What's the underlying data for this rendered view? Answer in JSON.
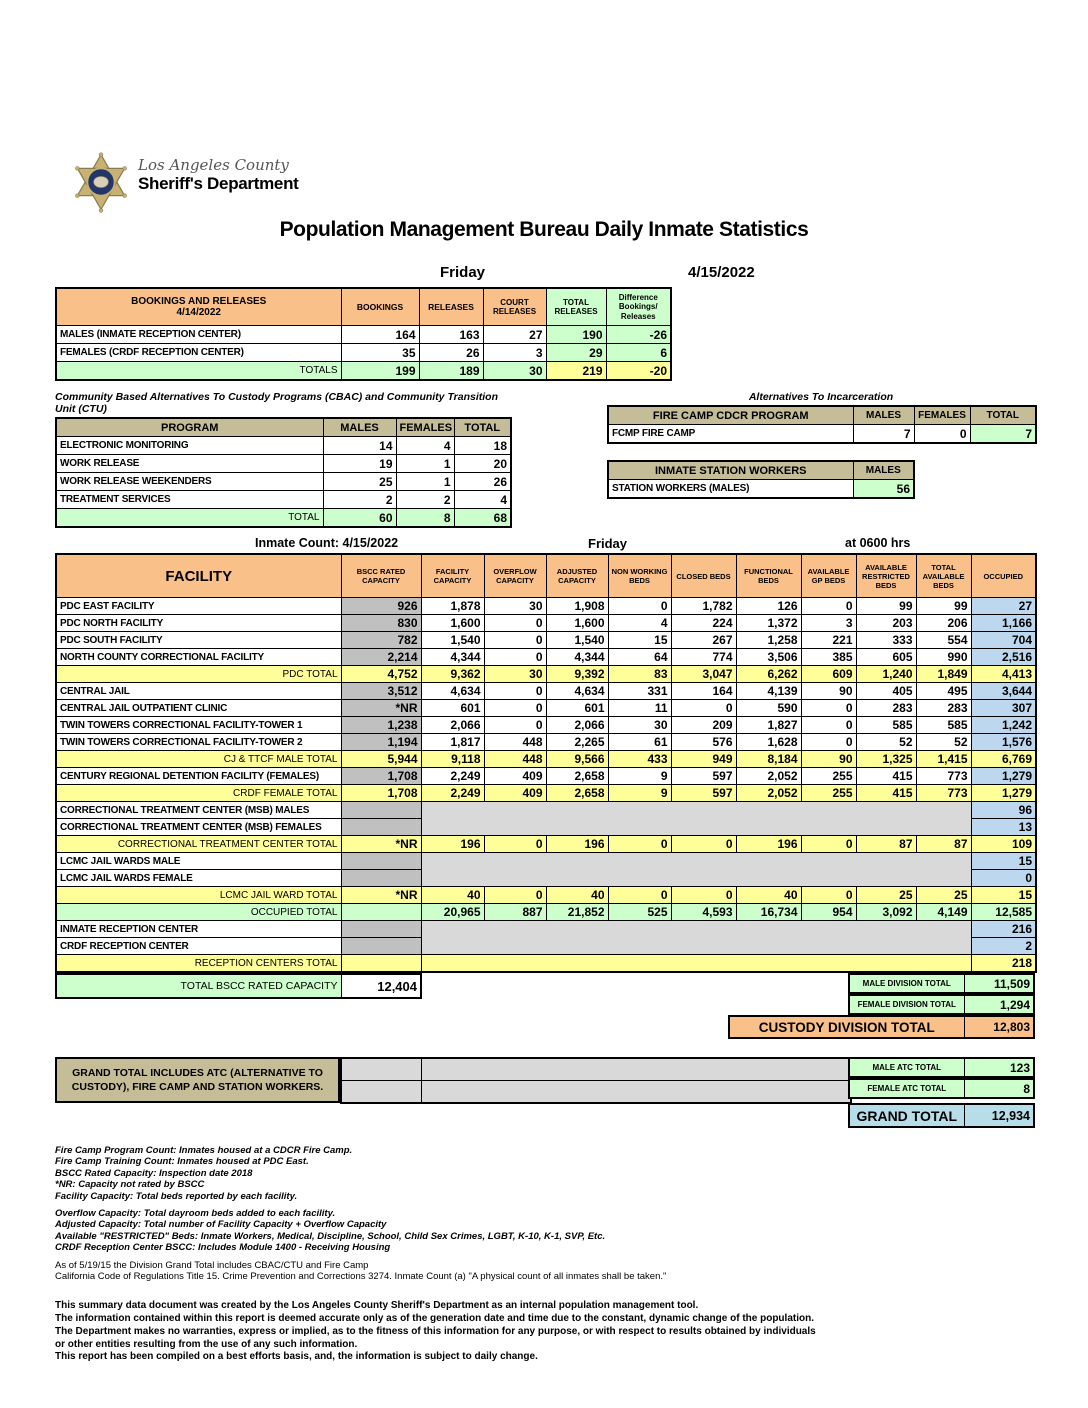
{
  "page": {
    "logo_line1": "Los Angeles County",
    "logo_line2": "Sheriff's Department",
    "title": "Population Management Bureau Daily Inmate Statistics",
    "day": "Friday",
    "date": "4/15/2022"
  },
  "bookings": {
    "title_line1": "BOOKINGS AND RELEASES",
    "title_line2": "4/14/2022",
    "columns": [
      "BOOKINGS",
      "RELEASES",
      "COURT RELEASES",
      "TOTAL RELEASES",
      "Difference Bookings/ Releases"
    ],
    "rows": [
      {
        "label": "MALES (INMATE RECEPTION CENTER)",
        "values": [
          "164",
          "163",
          "27",
          "190",
          "-26"
        ]
      },
      {
        "label": "FEMALES (CRDF RECEPTION CENTER)",
        "values": [
          "35",
          "26",
          "3",
          "29",
          "6"
        ]
      }
    ],
    "totals": {
      "label": "TOTALS",
      "values": [
        "199",
        "189",
        "30",
        "219",
        "-20"
      ]
    }
  },
  "cbac": {
    "title": "Community Based Alternatives To Custody Programs (CBAC) and Community Transition Unit (CTU)",
    "columns": [
      "PROGRAM",
      "MALES",
      "FEMALES",
      "TOTAL"
    ],
    "rows": [
      {
        "label": "ELECTRONIC MONITORING",
        "values": [
          "14",
          "4",
          "18"
        ]
      },
      {
        "label": "WORK RELEASE",
        "values": [
          "19",
          "1",
          "20"
        ]
      },
      {
        "label": "WORK RELEASE WEEKENDERS",
        "values": [
          "25",
          "1",
          "26"
        ]
      },
      {
        "label": "TREATMENT SERVICES",
        "values": [
          "2",
          "2",
          "4"
        ]
      }
    ],
    "total": {
      "label": "TOTAL",
      "values": [
        "60",
        "8",
        "68"
      ]
    }
  },
  "ati": {
    "title": "Alternatives To Incarceration",
    "fire_camp": {
      "header": "FIRE CAMP CDCR PROGRAM",
      "columns": [
        "MALES",
        "FEMALES",
        "TOTAL"
      ],
      "row": {
        "label": "FCMP FIRE CAMP",
        "values": [
          "7",
          "0",
          "7"
        ]
      }
    },
    "station_workers": {
      "header": "INMATE STATION WORKERS",
      "column": "MALES",
      "row": {
        "label": "STATION WORKERS (MALES)",
        "value": "56"
      }
    }
  },
  "inmate_count": {
    "label": "Inmate Count:  4/15/2022",
    "day": "Friday",
    "time": "at 0600 hrs"
  },
  "facility_table": {
    "columns": [
      "FACILITY",
      "BSCC RATED CAPACITY",
      "FACILITY CAPACITY",
      "OVERFLOW CAPACITY",
      "ADJUSTED CAPACITY",
      "NON WORKING BEDS",
      "CLOSED BEDS",
      "FUNCTIONAL BEDS",
      "AVAILABLE GP BEDS",
      "AVAILABLE RESTRICTED BEDS",
      "TOTAL AVAILABLE BEDS",
      "OCCUPIED"
    ],
    "rows": [
      {
        "label": "PDC EAST FACILITY",
        "type": "data",
        "values": [
          "926",
          "1,878",
          "30",
          "1,908",
          "0",
          "1,782",
          "126",
          "0",
          "99",
          "99",
          "27"
        ]
      },
      {
        "label": "PDC NORTH FACILITY",
        "type": "data",
        "values": [
          "830",
          "1,600",
          "0",
          "1,600",
          "4",
          "224",
          "1,372",
          "3",
          "203",
          "206",
          "1,166"
        ]
      },
      {
        "label": "PDC SOUTH FACILITY",
        "type": "data",
        "values": [
          "782",
          "1,540",
          "0",
          "1,540",
          "15",
          "267",
          "1,258",
          "221",
          "333",
          "554",
          "704"
        ]
      },
      {
        "label": "NORTH COUNTY CORRECTIONAL FACILITY",
        "type": "data",
        "values": [
          "2,214",
          "4,344",
          "0",
          "4,344",
          "64",
          "774",
          "3,506",
          "385",
          "605",
          "990",
          "2,516"
        ]
      },
      {
        "label": "PDC TOTAL",
        "type": "subtotal",
        "values": [
          "4,752",
          "9,362",
          "30",
          "9,392",
          "83",
          "3,047",
          "6,262",
          "609",
          "1,240",
          "1,849",
          "4,413"
        ]
      },
      {
        "label": "CENTRAL JAIL",
        "type": "data",
        "values": [
          "3,512",
          "4,634",
          "0",
          "4,634",
          "331",
          "164",
          "4,139",
          "90",
          "405",
          "495",
          "3,644"
        ]
      },
      {
        "label": "CENTRAL JAIL OUTPATIENT CLINIC",
        "type": "data",
        "values": [
          "*NR",
          "601",
          "0",
          "601",
          "11",
          "0",
          "590",
          "0",
          "283",
          "283",
          "307"
        ]
      },
      {
        "label": "TWIN TOWERS CORRECTIONAL FACILITY-TOWER 1",
        "type": "data",
        "values": [
          "1,238",
          "2,066",
          "0",
          "2,066",
          "30",
          "209",
          "1,827",
          "0",
          "585",
          "585",
          "1,242"
        ]
      },
      {
        "label": "TWIN TOWERS CORRECTIONAL FACILITY-TOWER 2",
        "type": "data",
        "values": [
          "1,194",
          "1,817",
          "448",
          "2,265",
          "61",
          "576",
          "1,628",
          "0",
          "52",
          "52",
          "1,576"
        ]
      },
      {
        "label": "CJ & TTCF MALE TOTAL",
        "type": "subtotal",
        "values": [
          "5,944",
          "9,118",
          "448",
          "9,566",
          "433",
          "949",
          "8,184",
          "90",
          "1,325",
          "1,415",
          "6,769"
        ]
      },
      {
        "label": "CENTURY REGIONAL DETENTION FACILITY (FEMALES)",
        "type": "data",
        "values": [
          "1,708",
          "2,249",
          "409",
          "2,658",
          "9",
          "597",
          "2,052",
          "255",
          "415",
          "773",
          "1,279"
        ]
      },
      {
        "label": "CRDF FEMALE TOTAL",
        "type": "subtotal",
        "values": [
          "1,708",
          "2,249",
          "409",
          "2,658",
          "9",
          "597",
          "2,052",
          "255",
          "415",
          "773",
          "1,279"
        ]
      },
      {
        "label": "CORRECTIONAL TREATMENT CENTER (MSB) MALES",
        "type": "merged",
        "bscc": "",
        "occupied": "96",
        "merge_rows": 2
      },
      {
        "label": "CORRECTIONAL TREATMENT CENTER (MSB) FEMALES",
        "type": "merged",
        "bscc": "",
        "occupied": "13",
        "merge_cont": true
      },
      {
        "label": "CORRECTIONAL TREATMENT CENTER  TOTAL",
        "type": "subtotal",
        "values": [
          "*NR",
          "196",
          "0",
          "196",
          "0",
          "0",
          "196",
          "0",
          "87",
          "87",
          "109"
        ]
      },
      {
        "label": "LCMC JAIL WARDS MALE",
        "type": "merged",
        "bscc": "",
        "occupied": "15",
        "merge_rows": 2
      },
      {
        "label": "LCMC JAIL WARDS FEMALE",
        "type": "merged",
        "bscc": "",
        "occupied": "0",
        "merge_cont": true
      },
      {
        "label": "LCMC JAIL WARD TOTAL",
        "type": "subtotal",
        "values": [
          "*NR",
          "40",
          "0",
          "40",
          "0",
          "0",
          "40",
          "0",
          "25",
          "25",
          "15"
        ]
      },
      {
        "label": "OCCUPIED TOTAL",
        "type": "grand",
        "values": [
          "",
          "20,965",
          "887",
          "21,852",
          "525",
          "4,593",
          "16,734",
          "954",
          "3,092",
          "4,149",
          "12,585"
        ]
      },
      {
        "label": "INMATE RECEPTION CENTER",
        "type": "merged",
        "bscc": "",
        "occupied": "216",
        "merge_rows": 2
      },
      {
        "label": "CRDF RECEPTION CENTER",
        "type": "merged",
        "bscc": "",
        "occupied": "2",
        "merge_cont": true
      },
      {
        "label": "RECEPTION CENTERS TOTAL",
        "type": "subtotal_merged",
        "bscc": "",
        "occupied": "218"
      }
    ]
  },
  "bottom": {
    "total_bscc": {
      "label": "TOTAL BSCC RATED CAPACITY",
      "value": "12,404"
    },
    "male_division": {
      "label": "MALE DIVISION TOTAL",
      "value": "11,509"
    },
    "female_division": {
      "label": "FEMALE DIVISION TOTAL",
      "value": "1,294"
    },
    "custody_division": {
      "label": "CUSTODY DIVISION TOTAL",
      "value": "12,803"
    },
    "grand_note_line1": "GRAND TOTAL INCLUDES ATC (ALTERNATIVE TO",
    "grand_note_line2": "CUSTODY), FIRE CAMP AND STATION WORKERS.",
    "male_atc": {
      "label": "MALE ATC TOTAL",
      "value": "123"
    },
    "female_atc": {
      "label": "FEMALE ATC TOTAL",
      "value": "8"
    },
    "grand_total": {
      "label": "GRAND TOTAL",
      "value": "12,934"
    }
  },
  "footnotes": [
    {
      "text": "Fire Camp Program Count: Inmates housed at a CDCR Fire Camp.",
      "style": "italic",
      "gap": false
    },
    {
      "text": "Fire Camp Training Count: Inmates housed at PDC East.",
      "style": "italic",
      "gap": false
    },
    {
      "text": "BSCC Rated Capacity: Inspection date 2018",
      "style": "italic",
      "gap": false
    },
    {
      "text": "*NR: Capacity not rated by BSCC",
      "style": "italic",
      "gap": false
    },
    {
      "text": "Facility Capacity: Total beds reported by each facility.",
      "style": "italic",
      "gap": false
    },
    {
      "text": "Overflow Capacity: Total dayroom beds added to each facility.",
      "style": "italic",
      "gap": true
    },
    {
      "text": "Adjusted Capacity: Total number of Facility Capacity + Overflow Capacity",
      "style": "italic",
      "gap": false
    },
    {
      "text": "Available \"RESTRICTED\" Beds: Inmate Workers, Medical, Discipline, School, Child Sex Crimes,  LGBT, K-10, K-1, SVP, Etc.",
      "style": "italic",
      "gap": false
    },
    {
      "text": "CRDF Reception Center BSCC: Includes Module 1400 - Receiving Housing",
      "style": "italic",
      "gap": false
    },
    {
      "text": "As of 5/19/15 the Division Grand Total includes CBAC/CTU and Fire Camp",
      "style": "regular",
      "gap": true
    },
    {
      "text": "California Code of Regulations Title 15. Crime Prevention and Corrections 3274. Inmate Count (a) \"A physical count of all inmates shall be taken.\"",
      "style": "regular",
      "gap": false
    }
  ],
  "disclaimer": [
    "This summary data document was created by the Los Angeles County Sheriff's Department as an internal population management tool.",
    "The information contained within this report is deemed accurate only as of the generation date and time due to the constant, dynamic change of the population.",
    "The Department makes no warranties, express or implied, as to the fitness of this information for any purpose, or with respect to results obtained by individuals",
    "or other entities resulting from the use of any such information.",
    "This report has been compiled on a best efforts basis, and, the information is subject to daily change."
  ]
}
